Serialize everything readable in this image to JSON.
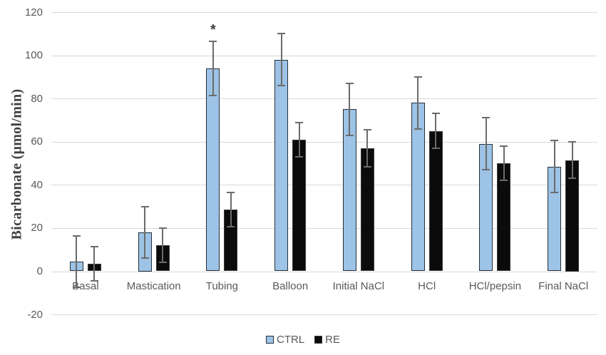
{
  "chart_data": {
    "type": "bar",
    "title": "",
    "xlabel": "",
    "ylabel": "Bicarbonate (μmol/min)",
    "categories": [
      "Basal",
      "Mastication",
      "Tubing",
      "Balloon",
      "Initial NaCl",
      "HCl",
      "HCl/pepsin",
      "Final NaCl"
    ],
    "series": [
      {
        "name": "CTRL",
        "fill_color": "#9DC3E6",
        "border_color": "#252F38",
        "values": [
          4.5,
          18,
          94,
          98,
          75,
          78,
          59,
          48.5
        ],
        "errors": [
          12,
          12,
          12.5,
          12,
          12,
          12,
          12,
          12
        ]
      },
      {
        "name": "RE",
        "fill_color": "#0B0B0B",
        "border_color": "#3A3A3A",
        "values": [
          3.5,
          12,
          28.5,
          61,
          57,
          65,
          50,
          51.5
        ],
        "errors": [
          8,
          8,
          8,
          8,
          8.5,
          8,
          8,
          8.5
        ]
      }
    ],
    "annotations": [
      {
        "text": "*",
        "category_index": 2,
        "series_index": 0
      }
    ],
    "y_ticks": [
      120,
      100,
      80,
      60,
      40,
      20,
      0,
      -20
    ],
    "ylim": [
      -20,
      120
    ],
    "grid": true,
    "legend_position": "bottom",
    "colors": {
      "gridline": "#D9D9D9",
      "error_bar": "#6B6B6B",
      "tick_label": "#595959",
      "axis_title": "#404040",
      "annotation": "#404040"
    }
  }
}
